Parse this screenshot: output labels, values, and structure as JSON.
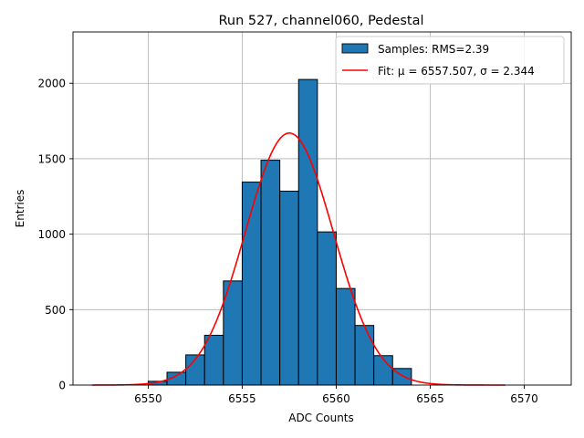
{
  "chart_data": {
    "type": "bar",
    "title": "Run 527, channel060, Pedestal",
    "xlabel": "ADC Counts",
    "ylabel": "Entries",
    "xlim": [
      6546,
      6572.5
    ],
    "ylim": [
      0,
      2340
    ],
    "xticks": [
      6550,
      6555,
      6560,
      6565,
      6570
    ],
    "yticks": [
      0,
      500,
      1000,
      1500,
      2000
    ],
    "grid": true,
    "legend_position": "top-right",
    "bins": {
      "edges": [
        6550,
        6551,
        6552,
        6553,
        6554,
        6555,
        6556,
        6557,
        6558,
        6559,
        6560,
        6561,
        6562,
        6563,
        6564
      ],
      "counts": [
        25,
        85,
        200,
        330,
        690,
        1345,
        1490,
        1285,
        2025,
        1015,
        640,
        395,
        195,
        110
      ]
    },
    "fit": {
      "mu": 6557.507,
      "sigma": 2.344,
      "amplitude": 1670,
      "x_range": [
        6547,
        6569
      ]
    },
    "series": [
      {
        "name": "Samples: RMS=2.39",
        "color": "#1f77b4"
      },
      {
        "name": "Fit: μ = 6557.507, σ = 2.344",
        "color": "#ff0000"
      }
    ]
  }
}
